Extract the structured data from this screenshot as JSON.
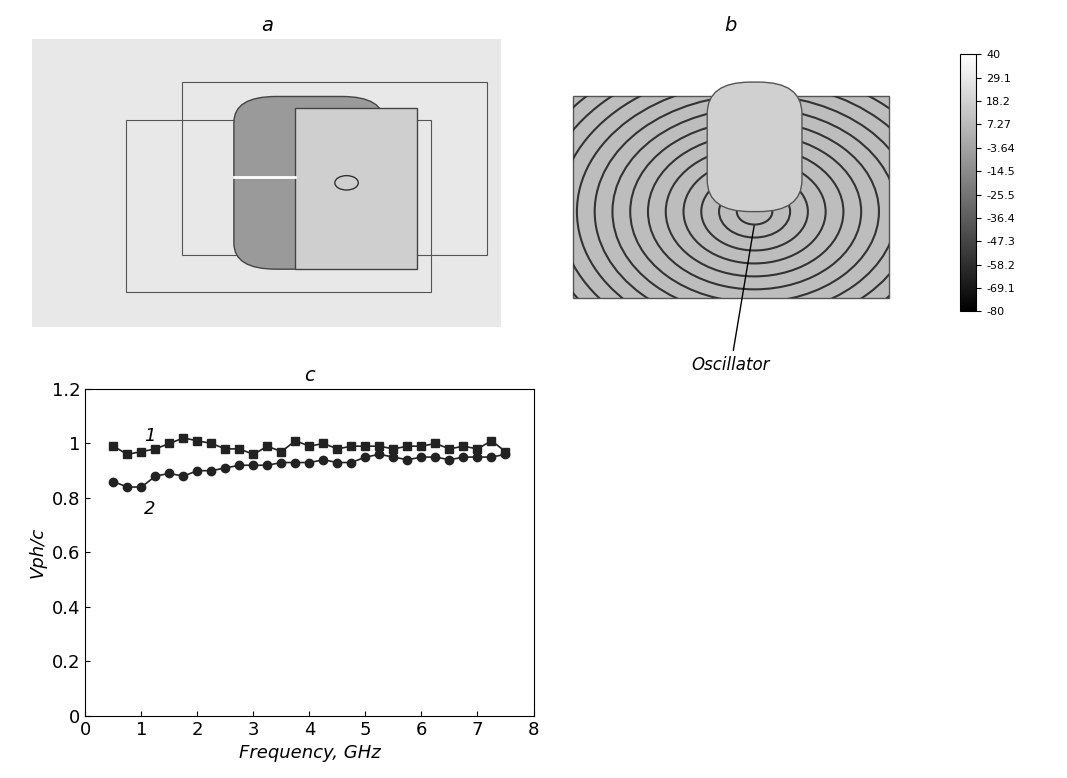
{
  "panel_labels": [
    "a",
    "b",
    "c"
  ],
  "field_map": {
    "annotation": "Oscillator",
    "colorbar": {
      "range": [
        -80,
        40
      ],
      "ticks": [
        40,
        29.1,
        18.2,
        7.27,
        -3.64,
        -14.5,
        -25.5,
        -36.4,
        -47.3,
        -58.2,
        -69.1,
        -80
      ]
    }
  },
  "chart_data": {
    "type": "line",
    "x_label": "Frequency, GHz",
    "y_label": "Vph/c",
    "x": [
      0.5,
      0.75,
      1.0,
      1.25,
      1.5,
      1.75,
      2.0,
      2.25,
      2.5,
      2.75,
      3.0,
      3.25,
      3.5,
      3.75,
      4.0,
      4.25,
      4.5,
      4.75,
      5.0,
      5.25,
      5.5,
      5.75,
      6.0,
      6.25,
      6.5,
      6.75,
      7.0,
      7.25,
      7.5
    ],
    "series": [
      {
        "name": "1",
        "color": "#222222",
        "marker": "square",
        "values": [
          0.99,
          0.96,
          0.97,
          0.98,
          1.0,
          1.02,
          1.01,
          1.0,
          0.98,
          0.98,
          0.96,
          0.99,
          0.97,
          1.01,
          0.99,
          1.0,
          0.98,
          0.99,
          0.99,
          0.99,
          0.98,
          0.99,
          0.99,
          1.0,
          0.98,
          0.99,
          0.98,
          1.01,
          0.97
        ]
      },
      {
        "name": "2",
        "color": "#222222",
        "marker": "circle",
        "values": [
          0.86,
          0.84,
          0.84,
          0.88,
          0.89,
          0.88,
          0.9,
          0.9,
          0.91,
          0.92,
          0.92,
          0.92,
          0.93,
          0.93,
          0.93,
          0.94,
          0.93,
          0.93,
          0.95,
          0.96,
          0.95,
          0.94,
          0.95,
          0.95,
          0.94,
          0.95,
          0.95,
          0.95,
          0.96
        ]
      }
    ],
    "xlim": [
      0,
      8
    ],
    "xticks": [
      0,
      1,
      2,
      3,
      4,
      5,
      6,
      7,
      8
    ],
    "ylim": [
      0,
      1.2
    ],
    "yticks": [
      0,
      0.2,
      0.4,
      0.6,
      0.8,
      1,
      1.2
    ],
    "grid": false
  }
}
